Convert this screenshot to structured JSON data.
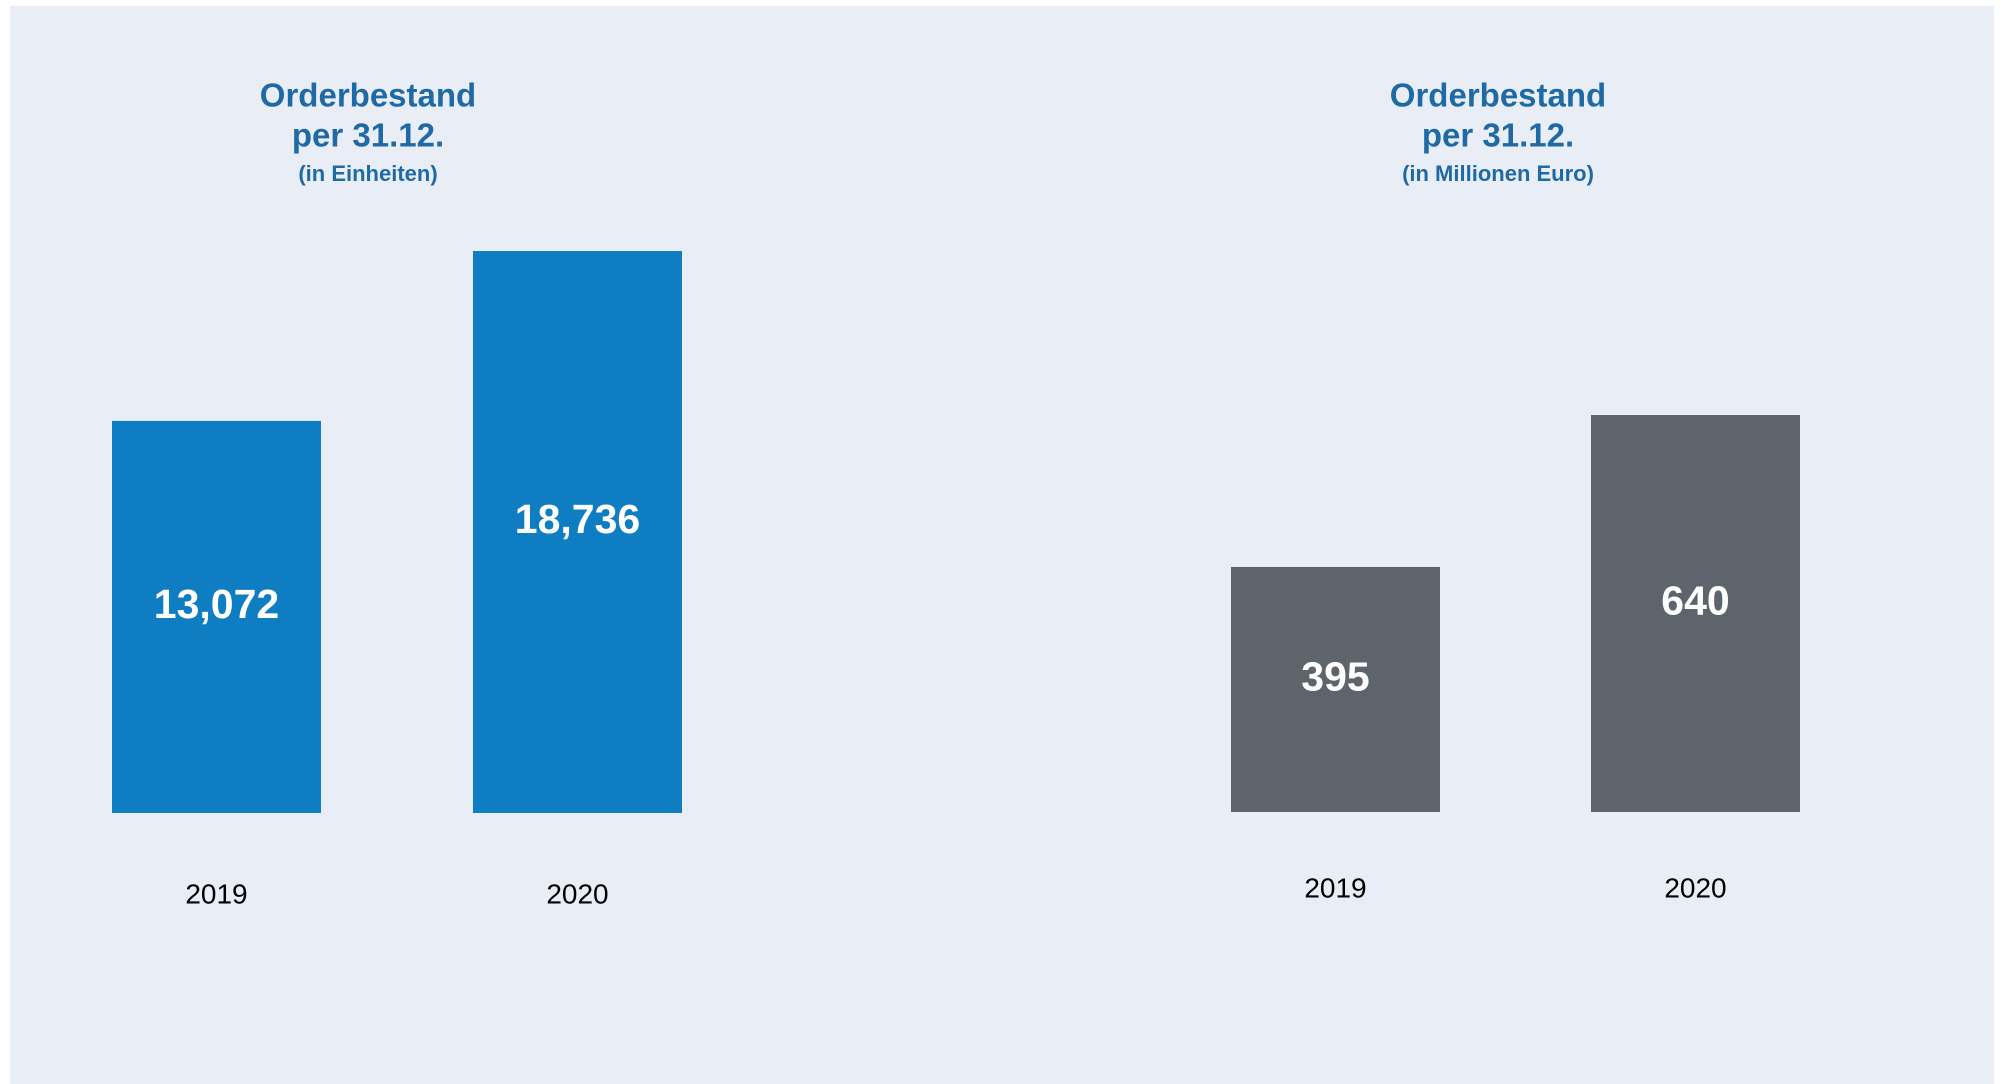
{
  "chart_data": [
    {
      "type": "bar",
      "title": [
        "Orderbestand",
        "per 31.12."
      ],
      "subtitle": "(in Einheiten)",
      "categories": [
        "2019",
        "2020"
      ],
      "values": [
        13072,
        18736
      ],
      "value_labels": [
        "13,072",
        "18,736"
      ],
      "color": "#0f7dc2"
    },
    {
      "type": "bar",
      "title": [
        "Orderbestand",
        "per 31.12."
      ],
      "subtitle": "(in Millionen Euro)",
      "categories": [
        "2019",
        "2020"
      ],
      "values": [
        395,
        640
      ],
      "value_labels": [
        "395",
        "640"
      ],
      "color": "#5d646b"
    }
  ]
}
